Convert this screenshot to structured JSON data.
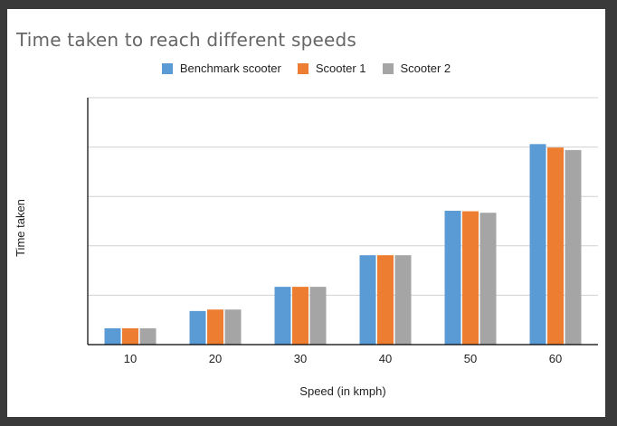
{
  "chart_data": {
    "type": "bar",
    "title": "Time taken to reach different speeds",
    "xlabel": "Speed (in kmph)",
    "ylabel": "Time taken",
    "categories": [
      "10",
      "20",
      "30",
      "40",
      "50",
      "60"
    ],
    "ylim": [
      0,
      5
    ],
    "grid": true,
    "legend_placement": "top-center",
    "series": [
      {
        "name": "Benchmark scooter",
        "color": "#5b9bd5",
        "values": [
          0.33,
          0.68,
          1.17,
          1.81,
          2.71,
          4.06
        ]
      },
      {
        "name": "Scooter 1",
        "color": "#ed7d31",
        "values": [
          0.33,
          0.71,
          1.17,
          1.81,
          2.7,
          3.99
        ]
      },
      {
        "name": "Scooter 2",
        "color": "#a5a5a5",
        "values": [
          0.33,
          0.71,
          1.17,
          1.81,
          2.67,
          3.94
        ]
      }
    ]
  }
}
